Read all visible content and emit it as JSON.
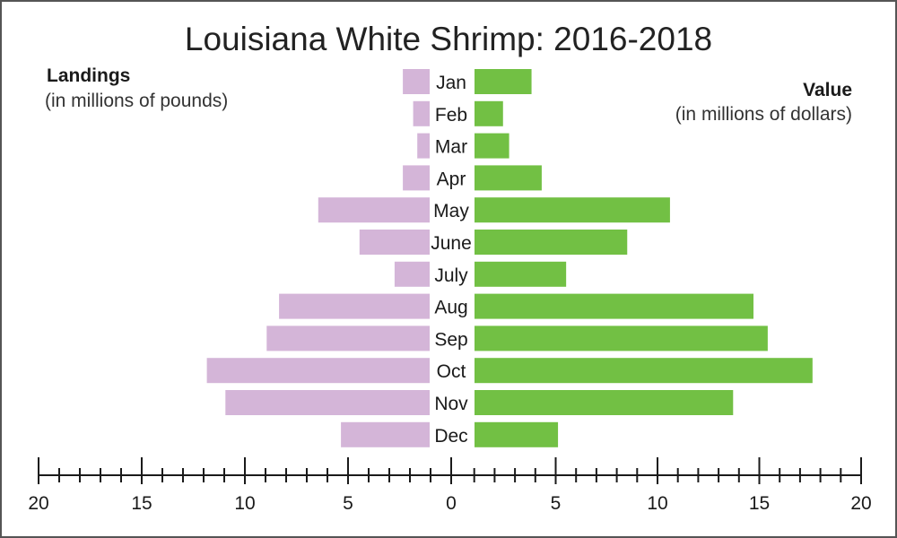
{
  "chart_data": {
    "type": "bar",
    "orientation": "horizontal",
    "layout": "back-to-back",
    "title": "Louisiana White Shrimp: 2016-2018",
    "categories": [
      "Jan",
      "Feb",
      "Mar",
      "Apr",
      "May",
      "June",
      "July",
      "Aug",
      "Sep",
      "Oct",
      "Nov",
      "Dec"
    ],
    "series": [
      {
        "name": "Landings",
        "unit": "(in millions of pounds)",
        "side": "left",
        "color": "#d4b5d8",
        "values": [
          1.3,
          0.8,
          0.6,
          1.3,
          5.4,
          3.4,
          1.7,
          7.3,
          7.9,
          10.8,
          9.9,
          4.3
        ]
      },
      {
        "name": "Value",
        "unit": "(in millions of dollars)",
        "side": "right",
        "color": "#72c044",
        "values": [
          2.8,
          1.4,
          1.7,
          3.3,
          9.6,
          7.5,
          4.5,
          13.7,
          14.4,
          16.6,
          12.7,
          4.1
        ]
      }
    ],
    "axis": {
      "ticks": [
        20,
        15,
        10,
        5,
        0,
        5,
        10,
        15,
        20
      ],
      "range": [
        0,
        20
      ],
      "major_step": 5,
      "minor_step": 1
    },
    "grid": false
  }
}
